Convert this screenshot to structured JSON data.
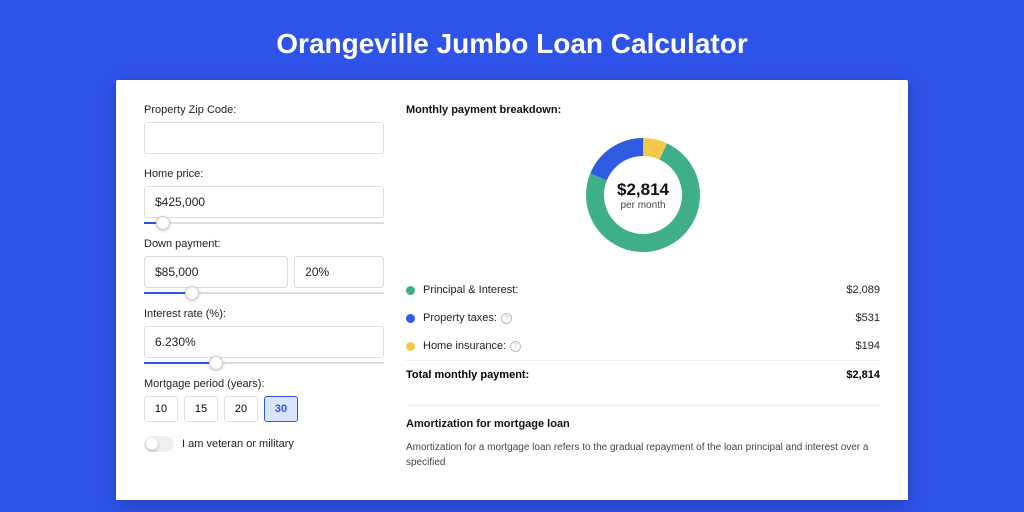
{
  "title": "Orangeville Jumbo Loan Calculator",
  "colors": {
    "brand": "#2e53e8",
    "green": "#3fae8b",
    "yellow": "#f2c94c",
    "blue": "#2f5be0"
  },
  "form": {
    "zip": {
      "label": "Property Zip Code:",
      "value": ""
    },
    "home_price": {
      "label": "Home price:",
      "value": "$425,000",
      "slider_pct": 8
    },
    "down_payment": {
      "label": "Down payment:",
      "amount": "$85,000",
      "pct": "20%",
      "slider_pct": 20
    },
    "interest": {
      "label": "Interest rate (%):",
      "value": "6.230%",
      "slider_pct": 30
    },
    "period": {
      "label": "Mortgage period (years):",
      "options": [
        "10",
        "15",
        "20",
        "30"
      ],
      "active": "30"
    },
    "veteran": {
      "label": "I am veteran or military",
      "checked": false
    }
  },
  "breakdown": {
    "title": "Monthly payment breakdown:",
    "center_amount": "$2,814",
    "center_sub": "per month",
    "donut": {
      "type": "donut",
      "thickness": 18,
      "segments": [
        {
          "label": "Principal & Interest:",
          "value": "$2,089",
          "pct": 74.2,
          "color": "#3fae8b",
          "info": false
        },
        {
          "label": "Property taxes:",
          "value": "$531",
          "pct": 18.9,
          "color": "#2f5be0",
          "info": true
        },
        {
          "label": "Home insurance:",
          "value": "$194",
          "pct": 6.9,
          "color": "#f2c94c",
          "info": true
        }
      ]
    },
    "total": {
      "label": "Total monthly payment:",
      "value": "$2,814"
    }
  },
  "amortization": {
    "title": "Amortization for mortgage loan",
    "body": "Amortization for a mortgage loan refers to the gradual repayment of the loan principal and interest over a specified"
  }
}
